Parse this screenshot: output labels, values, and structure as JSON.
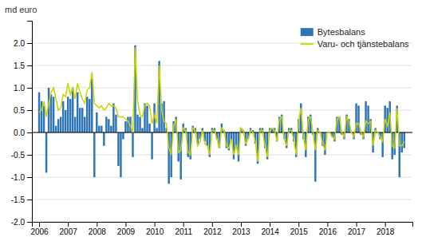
{
  "chart_data": {
    "type": "bar",
    "ylabel": "md euro",
    "x": [
      2006,
      2006.0833333,
      2006.1666667,
      2006.25,
      2006.3333333,
      2006.4166667,
      2006.5,
      2006.5833333,
      2006.6666667,
      2006.75,
      2006.8333333,
      2006.9166667,
      2007,
      2007.0833333,
      2007.1666667,
      2007.25,
      2007.3333333,
      2007.4166667,
      2007.5,
      2007.5833333,
      2007.6666667,
      2007.75,
      2007.8333333,
      2007.9166667,
      2008,
      2008.0833333,
      2008.1666667,
      2008.25,
      2008.3333333,
      2008.4166667,
      2008.5,
      2008.5833333,
      2008.6666667,
      2008.75,
      2008.8333333,
      2008.9166667,
      2009,
      2009.0833333,
      2009.1666667,
      2009.25,
      2009.3333333,
      2009.4166667,
      2009.5,
      2009.5833333,
      2009.6666667,
      2009.75,
      2009.8333333,
      2009.9166667,
      2010,
      2010.0833333,
      2010.1666667,
      2010.25,
      2010.3333333,
      2010.4166667,
      2010.5,
      2010.5833333,
      2010.6666667,
      2010.75,
      2010.8333333,
      2010.9166667,
      2011,
      2011.0833333,
      2011.1666667,
      2011.25,
      2011.3333333,
      2011.4166667,
      2011.5,
      2011.5833333,
      2011.6666667,
      2011.75,
      2011.8333333,
      2011.9166667,
      2012,
      2012.0833333,
      2012.1666667,
      2012.25,
      2012.3333333,
      2012.4166667,
      2012.5,
      2012.5833333,
      2012.6666667,
      2012.75,
      2012.8333333,
      2012.9166667,
      2013,
      2013.0833333,
      2013.1666667,
      2013.25,
      2013.3333333,
      2013.4166667,
      2013.5,
      2013.5833333,
      2013.6666667,
      2013.75,
      2013.8333333,
      2013.9166667,
      2014,
      2014.0833333,
      2014.1666667,
      2014.25,
      2014.3333333,
      2014.4166667,
      2014.5,
      2014.5833333,
      2014.6666667,
      2014.75,
      2014.8333333,
      2014.9166667,
      2015,
      2015.0833333,
      2015.1666667,
      2015.25,
      2015.3333333,
      2015.4166667,
      2015.5,
      2015.5833333,
      2015.6666667,
      2015.75,
      2015.8333333,
      2015.9166667,
      2016,
      2016.0833333,
      2016.1666667,
      2016.25,
      2016.3333333,
      2016.4166667,
      2016.5,
      2016.5833333,
      2016.6666667,
      2016.75,
      2016.8333333,
      2016.9166667,
      2017,
      2017.0833333,
      2017.1666667,
      2017.25,
      2017.3333333,
      2017.4166667,
      2017.5,
      2017.5833333,
      2017.6666667,
      2017.75,
      2017.8333333,
      2017.9166667,
      2018,
      2018.0833333,
      2018.1666667,
      2018.25,
      2018.3333333,
      2018.4166667,
      2018.5,
      2018.5833333,
      2018.6666667
    ],
    "series": [
      {
        "name": "Bytesbalans",
        "type": "bar",
        "color": "#2e75b6",
        "values": [
          0.9,
          0.7,
          0.6,
          -0.9,
          1.0,
          0.85,
          0.8,
          0.15,
          0.3,
          0.35,
          0.7,
          0.5,
          0.8,
          0.75,
          1.0,
          0.35,
          0.9,
          0.55,
          0.55,
          0.35,
          0.8,
          0.75,
          1.2,
          -1.0,
          0.45,
          0.15,
          0.15,
          -0.3,
          0.35,
          0.3,
          0.15,
          0.65,
          0.4,
          -0.75,
          -1.0,
          -0.15,
          0.25,
          0.35,
          0.35,
          -0.55,
          1.95,
          0.4,
          0.35,
          0.1,
          0.65,
          0.6,
          0.2,
          -0.6,
          0.65,
          0.1,
          1.6,
          0.65,
          0.7,
          0.1,
          -1.15,
          -1.0,
          0.25,
          0.35,
          -0.65,
          -1.05,
          0.2,
          0.1,
          -0.55,
          -0.6,
          0.15,
          0.1,
          -0.25,
          -0.15,
          0.1,
          -0.2,
          -0.3,
          -0.55,
          0.1,
          0.1,
          -0.15,
          -0.35,
          0.2,
          0.05,
          -0.35,
          -0.4,
          -0.2,
          -0.6,
          -0.35,
          -0.65,
          0.1,
          0.05,
          -0.3,
          -0.15,
          0.1,
          0.05,
          -0.25,
          -0.7,
          0.1,
          0.1,
          -0.35,
          -0.6,
          0.1,
          0.1,
          0.1,
          -0.2,
          0.35,
          0.4,
          -0.15,
          -0.35,
          0.1,
          0.1,
          -0.2,
          -0.55,
          0.3,
          0.65,
          -0.15,
          -0.55,
          0.35,
          0.4,
          -0.05,
          -1.1,
          0.1,
          0.0,
          -0.3,
          -0.5,
          0.0,
          0.0,
          -0.1,
          -0.2,
          0.35,
          0.35,
          -0.05,
          -0.15,
          0.4,
          0.3,
          0.0,
          -0.15,
          0.65,
          0.6,
          -0.05,
          -0.15,
          0.7,
          0.6,
          0.3,
          -0.45,
          0.1,
          0.0,
          -0.15,
          -0.55,
          0.6,
          0.55,
          0.7,
          -0.6,
          -0.5,
          0.6,
          -1.0,
          -0.45,
          -0.35
        ]
      },
      {
        "name": "Varu- och tjänstebalans",
        "type": "line",
        "color": "#c8d400",
        "values": [
          0.45,
          0.5,
          0.7,
          0.35,
          0.65,
          0.9,
          1.0,
          0.75,
          0.5,
          0.55,
          0.85,
          0.8,
          1.1,
          0.85,
          1.0,
          0.75,
          1.1,
          0.9,
          0.75,
          0.65,
          0.95,
          1.0,
          1.35,
          0.65,
          0.6,
          0.55,
          0.6,
          0.5,
          0.55,
          0.65,
          0.6,
          0.6,
          0.55,
          0.35,
          0.35,
          0.35,
          0.3,
          0.25,
          0.15,
          0.0,
          1.9,
          0.7,
          0.4,
          0.35,
          0.6,
          0.65,
          0.6,
          0.2,
          0.4,
          0.2,
          1.5,
          0.5,
          0.25,
          0.2,
          -0.35,
          -0.5,
          0.15,
          0.3,
          -0.45,
          -0.4,
          0.1,
          0.05,
          -0.45,
          -0.5,
          0.1,
          0.05,
          -0.3,
          -0.2,
          0.05,
          -0.25,
          -0.3,
          -0.5,
          0.05,
          0.05,
          -0.15,
          -0.35,
          0.1,
          0.05,
          -0.3,
          -0.35,
          -0.15,
          -0.5,
          -0.3,
          -0.5,
          0.1,
          0.05,
          -0.25,
          -0.15,
          0.05,
          0.0,
          -0.2,
          -0.65,
          0.05,
          0.05,
          -0.3,
          -0.55,
          0.05,
          0.1,
          0.05,
          -0.2,
          0.3,
          0.35,
          -0.15,
          -0.3,
          0.05,
          0.05,
          -0.15,
          -0.5,
          0.25,
          0.55,
          -0.1,
          -0.4,
          0.3,
          0.35,
          0.0,
          -0.4,
          0.05,
          0.0,
          -0.25,
          -0.4,
          0.0,
          0.0,
          -0.1,
          -0.15,
          0.3,
          0.35,
          0.0,
          -0.1,
          0.35,
          0.25,
          0.0,
          -0.1,
          0.2,
          0.2,
          0.0,
          -0.1,
          0.25,
          0.2,
          0.25,
          -0.3,
          0.05,
          0.0,
          -0.1,
          -0.2,
          0.3,
          0.15,
          0.45,
          -0.3,
          -0.35,
          0.55,
          -0.3,
          -0.3,
          -0.2
        ]
      }
    ],
    "xlim": [
      2005.75,
      2018.95
    ],
    "xticks": [
      2006,
      2007,
      2008,
      2009,
      2010,
      2011,
      2012,
      2013,
      2014,
      2015,
      2016,
      2017,
      2018
    ],
    "ylim": [
      -2.0,
      2.5
    ],
    "yticks": [
      {
        "value": -2.0,
        "label": "-2.0"
      },
      -1.5,
      {
        "value": -1.0,
        "label": "-1.0"
      },
      -0.5,
      {
        "value": 0.0,
        "label": "0.0"
      },
      0.5,
      {
        "value": 1.0,
        "label": "1.0"
      },
      1.5,
      {
        "value": 2.0,
        "label": "2.0"
      }
    ],
    "grid": true,
    "legend": "upper right"
  }
}
